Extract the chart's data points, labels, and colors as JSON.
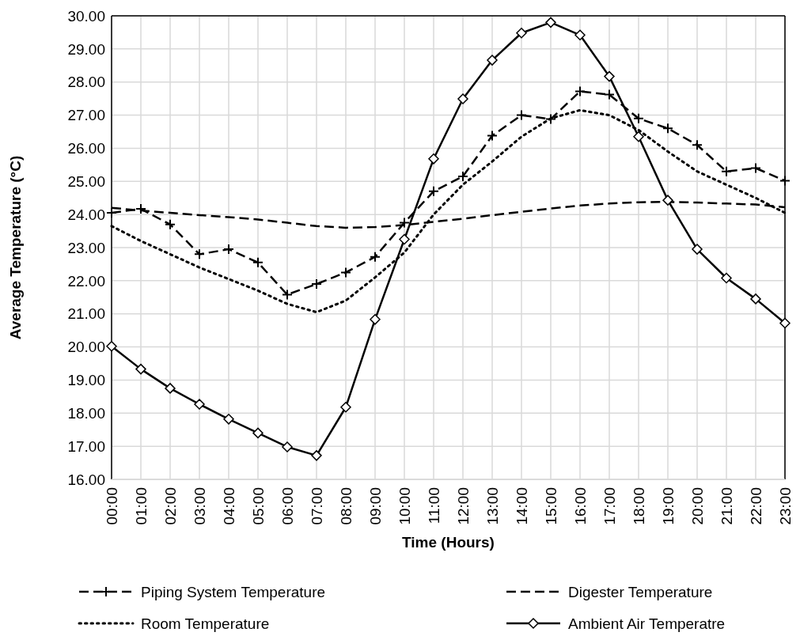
{
  "chart_data": {
    "type": "line",
    "xlabel": "Time (Hours)",
    "ylabel": "Average Temperature (°C)",
    "categories": [
      "00:00",
      "01:00",
      "02:00",
      "03:00",
      "04:00",
      "05:00",
      "06:00",
      "07:00",
      "08:00",
      "09:00",
      "10:00",
      "11:00",
      "12:00",
      "13:00",
      "14:00",
      "15:00",
      "16:00",
      "17:00",
      "18:00",
      "19:00",
      "20:00",
      "21:00",
      "22:00",
      "23:00"
    ],
    "series": [
      {
        "name": "Piping System Temperature",
        "color": "#000000",
        "marker": "cross",
        "line_style": "dashed",
        "values": [
          24.05,
          24.17,
          23.7,
          22.8,
          22.95,
          22.55,
          21.58,
          21.9,
          22.25,
          22.72,
          23.75,
          24.7,
          25.15,
          26.38,
          27.0,
          26.88,
          27.72,
          27.62,
          26.9,
          26.6,
          26.1,
          25.3,
          25.4,
          25.02
        ]
      },
      {
        "name": "Digester Temperature",
        "color": "#000000",
        "marker": "none",
        "line_style": "dashed",
        "values": [
          24.2,
          24.12,
          24.05,
          23.98,
          23.92,
          23.85,
          23.75,
          23.65,
          23.6,
          23.62,
          23.68,
          23.78,
          23.87,
          23.98,
          24.08,
          24.18,
          24.27,
          24.33,
          24.37,
          24.38,
          24.36,
          24.33,
          24.3,
          24.22
        ]
      },
      {
        "name": "Room Temperature",
        "color": "#000000",
        "marker": "none",
        "line_style": "dotted",
        "values": [
          23.65,
          23.2,
          22.8,
          22.4,
          22.05,
          21.7,
          21.3,
          21.05,
          21.4,
          22.1,
          22.85,
          24.0,
          24.9,
          25.6,
          26.35,
          26.9,
          27.15,
          27.0,
          26.55,
          25.9,
          25.3,
          24.9,
          24.5,
          24.05
        ]
      },
      {
        "name": "Ambient  Air Temperatre",
        "color": "#000000",
        "marker": "diamond",
        "line_style": "solid",
        "values": [
          20.02,
          19.33,
          18.75,
          18.27,
          17.82,
          17.4,
          16.98,
          16.72,
          18.18,
          20.83,
          23.25,
          25.68,
          27.49,
          28.66,
          29.48,
          29.8,
          29.42,
          28.17,
          26.35,
          24.43,
          22.95,
          22.08,
          21.45,
          20.72
        ]
      }
    ],
    "ylim": [
      16,
      30
    ],
    "yticks": [
      {
        "value": 16,
        "label": "16.00"
      },
      {
        "value": 17,
        "label": "17.00"
      },
      {
        "value": 18,
        "label": "18.00"
      },
      {
        "value": 19,
        "label": "19.00"
      },
      {
        "value": 20,
        "label": "20.00"
      },
      {
        "value": 21,
        "label": "21.00"
      },
      {
        "value": 22,
        "label": "22.00"
      },
      {
        "value": 23,
        "label": "23.00"
      },
      {
        "value": 24,
        "label": "24.00"
      },
      {
        "value": 25,
        "label": "25.00"
      },
      {
        "value": 26,
        "label": "26.00"
      },
      {
        "value": 27,
        "label": "27.00"
      },
      {
        "value": 28,
        "label": "28.00"
      },
      {
        "value": 29,
        "label": "29.00"
      },
      {
        "value": 30,
        "label": "30.00"
      }
    ],
    "grid": true,
    "legend": "bottom"
  }
}
